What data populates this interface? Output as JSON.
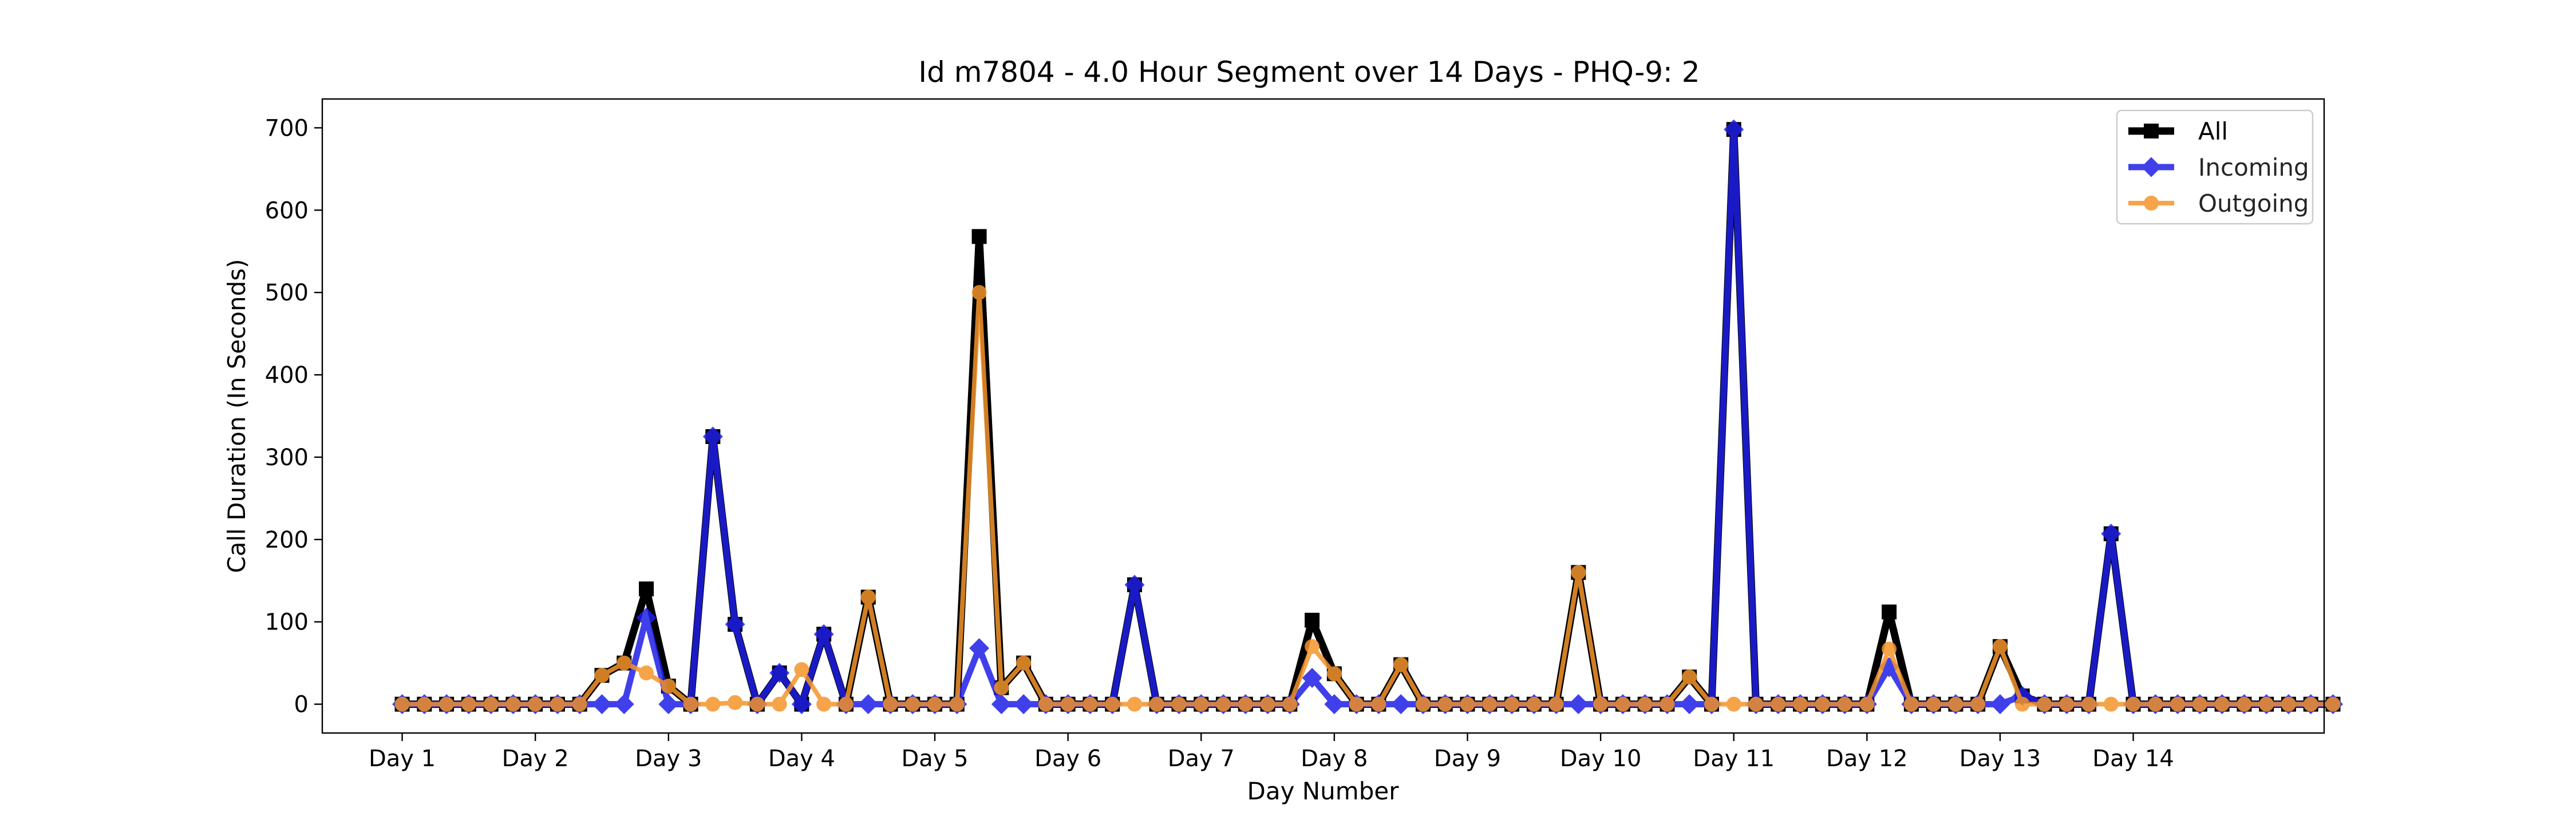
{
  "chart_data": {
    "type": "line",
    "title": "Id m7804 - 4.0 Hour Segment over 14 Days - PHQ-9: 2",
    "xlabel": "Day Number",
    "ylabel": "Call Duration (In Seconds)",
    "ylim": [
      -35,
      735
    ],
    "xlim": [
      -3.6,
      86.6
    ],
    "yticks": [
      0,
      100,
      200,
      300,
      400,
      500,
      600,
      700
    ],
    "x_ticks": [
      {
        "x": 0,
        "label": "Day 1"
      },
      {
        "x": 6,
        "label": "Day 2"
      },
      {
        "x": 12,
        "label": "Day 3"
      },
      {
        "x": 18,
        "label": "Day 4"
      },
      {
        "x": 24,
        "label": "Day 5"
      },
      {
        "x": 30,
        "label": "Day 6"
      },
      {
        "x": 36,
        "label": "Day 7"
      },
      {
        "x": 42,
        "label": "Day 8"
      },
      {
        "x": 48,
        "label": "Day 9"
      },
      {
        "x": 54,
        "label": "Day 10"
      },
      {
        "x": 60,
        "label": "Day 11"
      },
      {
        "x": 66,
        "label": "Day 12"
      },
      {
        "x": 72,
        "label": "Day 13"
      },
      {
        "x": 78,
        "label": "Day 14"
      }
    ],
    "grid": false,
    "legend_position": "top-right",
    "series": [
      {
        "name": "All",
        "color": "#000000",
        "marker": "square",
        "values": [
          0,
          0,
          0,
          0,
          0,
          0,
          0,
          0,
          0,
          35,
          50,
          140,
          22,
          0,
          325,
          97,
          0,
          38,
          0,
          85,
          0,
          130,
          0,
          0,
          0,
          0,
          568,
          20,
          50,
          0,
          0,
          0,
          0,
          145,
          0,
          0,
          0,
          0,
          0,
          0,
          0,
          102,
          37,
          0,
          0,
          48,
          0,
          0,
          0,
          0,
          0,
          0,
          0,
          160,
          0,
          0,
          0,
          0,
          33,
          0,
          698,
          0,
          0,
          0,
          0,
          0,
          0,
          112,
          0,
          0,
          0,
          0,
          70,
          10,
          0,
          0,
          0,
          207,
          0,
          0,
          0,
          0,
          0,
          0,
          0,
          0,
          0,
          0
        ]
      },
      {
        "name": "Incoming",
        "color": "#1f1fe8",
        "marker": "diamond",
        "values": [
          0,
          0,
          0,
          0,
          0,
          0,
          0,
          0,
          0,
          0,
          0,
          105,
          0,
          0,
          325,
          97,
          0,
          38,
          0,
          85,
          0,
          0,
          0,
          0,
          0,
          0,
          68,
          0,
          0,
          0,
          0,
          0,
          0,
          145,
          0,
          0,
          0,
          0,
          0,
          0,
          0,
          32,
          0,
          0,
          0,
          0,
          0,
          0,
          0,
          0,
          0,
          0,
          0,
          0,
          0,
          0,
          0,
          0,
          0,
          0,
          698,
          0,
          0,
          0,
          0,
          0,
          0,
          45,
          0,
          0,
          0,
          0,
          0,
          10,
          0,
          0,
          0,
          207,
          0,
          0,
          0,
          0,
          0,
          0,
          0,
          0,
          0,
          0
        ]
      },
      {
        "name": "Outgoing",
        "color": "#f5952a",
        "marker": "circle",
        "values": [
          0,
          0,
          0,
          0,
          0,
          0,
          0,
          0,
          0,
          35,
          50,
          38,
          22,
          0,
          0,
          2,
          0,
          0,
          42,
          0,
          0,
          130,
          0,
          0,
          0,
          0,
          500,
          20,
          50,
          0,
          0,
          0,
          0,
          0,
          0,
          0,
          0,
          0,
          0,
          0,
          0,
          70,
          37,
          0,
          0,
          48,
          0,
          0,
          0,
          0,
          0,
          0,
          0,
          160,
          0,
          0,
          0,
          0,
          33,
          0,
          0,
          0,
          0,
          0,
          0,
          0,
          0,
          67,
          0,
          0,
          0,
          0,
          70,
          0,
          0,
          0,
          0,
          0,
          0,
          0,
          0,
          0,
          0,
          0,
          0,
          0,
          0,
          0
        ]
      }
    ]
  }
}
